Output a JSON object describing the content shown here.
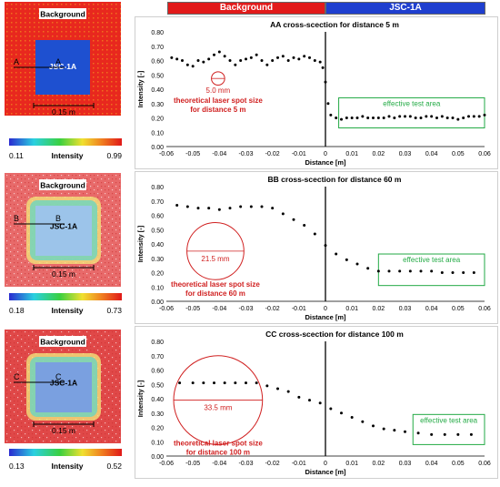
{
  "header": {
    "left_tag": "Background",
    "right_tag": "JSC-1A"
  },
  "maps": [
    {
      "background_label": "Background",
      "sample_label": "JSC-1A",
      "section_letter": "A",
      "scale_label": "0.15 m",
      "colorbar": {
        "min": "0.11",
        "max": "0.99",
        "label": "Intensity"
      },
      "colors": {
        "background": "#e8281e",
        "sample": "#1e50d0"
      }
    },
    {
      "background_label": "Background",
      "sample_label": "JSC-1A",
      "section_letter": "B",
      "scale_label": "0.15 m",
      "colorbar": {
        "min": "0.18",
        "max": "0.73",
        "label": "Intensity"
      },
      "colors": {
        "background": "#e86a6a",
        "sample": "#9cc4ea"
      }
    },
    {
      "background_label": "Background",
      "sample_label": "JSC-1A",
      "section_letter": "C",
      "scale_label": "0.15 m",
      "colorbar": {
        "min": "0.13",
        "max": "0.52",
        "label": "Intensity"
      },
      "colors": {
        "background": "#e04848",
        "sample": "#7aa0e0"
      }
    }
  ],
  "chart_data": [
    {
      "type": "scatter",
      "title": "AA cross-scection for distance 5 m",
      "xlabel": "Distance [m]",
      "ylabel": "Intensity [-]",
      "xlim": [
        -0.06,
        0.06
      ],
      "ylim": [
        0,
        0.8
      ],
      "xticks": [
        "-0.06",
        "-0.05",
        "-0.04",
        "-0.03",
        "-0.02",
        "-0.01",
        "0",
        "0.01",
        "0.02",
        "0.03",
        "0.04",
        "0.05",
        "0.06"
      ],
      "yticks": [
        "0.00",
        "0.10",
        "0.20",
        "0.30",
        "0.40",
        "0.50",
        "0.60",
        "0.70",
        "0.80"
      ],
      "spot_label": "5.0 mm",
      "spot_caption": [
        "theoretical  laser spot size",
        "for distance 5 m"
      ],
      "effective_label": "effective test area",
      "effective_x": [
        0.005,
        0.06
      ],
      "effective_y": [
        0.13,
        0.34
      ],
      "spot_center": [
        -0.0405,
        0.475
      ],
      "spot_diameter": 0.005,
      "x": [
        -0.058,
        -0.056,
        -0.054,
        -0.052,
        -0.05,
        -0.048,
        -0.046,
        -0.044,
        -0.042,
        -0.04,
        -0.038,
        -0.036,
        -0.034,
        -0.032,
        -0.03,
        -0.028,
        -0.026,
        -0.024,
        -0.022,
        -0.02,
        -0.018,
        -0.016,
        -0.014,
        -0.012,
        -0.01,
        -0.008,
        -0.006,
        -0.004,
        -0.002,
        -0.001,
        0,
        0.001,
        0.002,
        0.004,
        0.006,
        0.008,
        0.01,
        0.012,
        0.014,
        0.016,
        0.018,
        0.02,
        0.022,
        0.024,
        0.026,
        0.028,
        0.03,
        0.032,
        0.034,
        0.036,
        0.038,
        0.04,
        0.042,
        0.044,
        0.046,
        0.048,
        0.05,
        0.052,
        0.054,
        0.056,
        0.058,
        0.06
      ],
      "y": [
        0.62,
        0.61,
        0.6,
        0.57,
        0.56,
        0.6,
        0.59,
        0.61,
        0.64,
        0.66,
        0.63,
        0.6,
        0.57,
        0.6,
        0.61,
        0.62,
        0.64,
        0.6,
        0.57,
        0.6,
        0.62,
        0.63,
        0.6,
        0.62,
        0.61,
        0.63,
        0.62,
        0.6,
        0.59,
        0.55,
        0.45,
        0.3,
        0.22,
        0.2,
        0.19,
        0.2,
        0.2,
        0.2,
        0.21,
        0.2,
        0.2,
        0.2,
        0.2,
        0.21,
        0.2,
        0.21,
        0.21,
        0.21,
        0.2,
        0.2,
        0.21,
        0.21,
        0.2,
        0.21,
        0.2,
        0.2,
        0.19,
        0.2,
        0.21,
        0.21,
        0.21,
        0.22
      ]
    },
    {
      "type": "scatter",
      "title": "BB cross-scection for distance 60 m",
      "xlabel": "Distance [m]",
      "ylabel": "Intensity [-]",
      "xlim": [
        -0.06,
        0.06
      ],
      "ylim": [
        0,
        0.8
      ],
      "xticks": [
        "-0.06",
        "-0.05",
        "-0.04",
        "-0.03",
        "-0.02",
        "-0.01",
        "0",
        "0.01",
        "0.02",
        "0.03",
        "0.04",
        "0.05",
        "0.06"
      ],
      "yticks": [
        "0.00",
        "0.10",
        "0.20",
        "0.30",
        "0.40",
        "0.50",
        "0.60",
        "0.70",
        "0.80"
      ],
      "spot_label": "21.5 mm",
      "spot_caption": [
        "theoretical  laser spot size",
        "for distance 60 m"
      ],
      "effective_label": "effective test area",
      "effective_x": [
        0.02,
        0.06
      ],
      "effective_y": [
        0.11,
        0.33
      ],
      "spot_center": [
        -0.0415,
        0.35
      ],
      "spot_diameter": 0.0215,
      "x": [
        -0.056,
        -0.052,
        -0.048,
        -0.044,
        -0.04,
        -0.036,
        -0.032,
        -0.028,
        -0.024,
        -0.02,
        -0.016,
        -0.012,
        -0.008,
        -0.004,
        0,
        0.004,
        0.008,
        0.012,
        0.016,
        0.02,
        0.024,
        0.028,
        0.032,
        0.036,
        0.04,
        0.044,
        0.048,
        0.052,
        0.056
      ],
      "y": [
        0.67,
        0.66,
        0.65,
        0.65,
        0.64,
        0.65,
        0.66,
        0.66,
        0.66,
        0.65,
        0.61,
        0.57,
        0.53,
        0.47,
        0.39,
        0.33,
        0.29,
        0.26,
        0.23,
        0.21,
        0.21,
        0.21,
        0.21,
        0.21,
        0.21,
        0.2,
        0.2,
        0.2,
        0.2
      ]
    },
    {
      "type": "scatter",
      "title": "CC cross-scection for distance 100 m",
      "xlabel": "Distance [m]",
      "ylabel": "Intensity [-]",
      "xlim": [
        -0.06,
        0.06
      ],
      "ylim": [
        0,
        0.8
      ],
      "xticks": [
        "-0.06",
        "-0.05",
        "-0.04",
        "-0.03",
        "-0.02",
        "-0.01",
        "0",
        "0.01",
        "0.02",
        "0.03",
        "0.04",
        "0.05",
        "0.06"
      ],
      "yticks": [
        "0.00",
        "0.10",
        "0.20",
        "0.30",
        "0.40",
        "0.50",
        "0.60",
        "0.70",
        "0.80"
      ],
      "spot_label": "33.5 mm",
      "spot_caption": [
        "theoretical  laser spot size",
        "for distance 100 m"
      ],
      "effective_label": "effective test area",
      "effective_x": [
        0.033,
        0.06
      ],
      "effective_y": [
        0.08,
        0.29
      ],
      "spot_center": [
        -0.0405,
        0.39
      ],
      "spot_diameter": 0.0335,
      "x": [
        -0.055,
        -0.05,
        -0.046,
        -0.042,
        -0.038,
        -0.034,
        -0.03,
        -0.026,
        -0.022,
        -0.018,
        -0.014,
        -0.01,
        -0.006,
        -0.002,
        0.002,
        0.006,
        0.01,
        0.014,
        0.018,
        0.022,
        0.026,
        0.03,
        0.035,
        0.04,
        0.045,
        0.05,
        0.055
      ],
      "y": [
        0.51,
        0.51,
        0.51,
        0.51,
        0.51,
        0.51,
        0.51,
        0.51,
        0.49,
        0.47,
        0.45,
        0.41,
        0.39,
        0.37,
        0.33,
        0.3,
        0.27,
        0.24,
        0.21,
        0.19,
        0.18,
        0.17,
        0.16,
        0.15,
        0.15,
        0.15,
        0.15
      ]
    }
  ]
}
